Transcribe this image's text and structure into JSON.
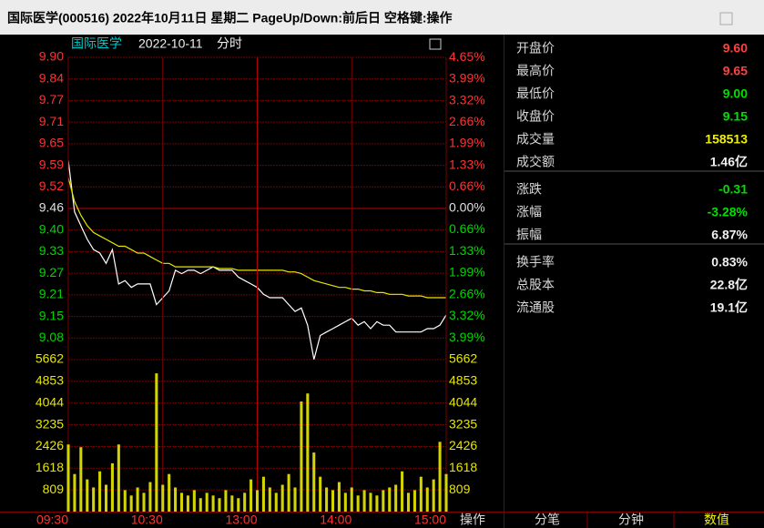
{
  "window": {
    "title": "国际医学(000516) 2022年10月11日 星期二 PageUp/Down:前后日 空格键:操作"
  },
  "chart_data": [
    {
      "type": "line",
      "title": "国际医学",
      "date": "2022-10-11",
      "view": "分时",
      "x": [
        0,
        4,
        8,
        12,
        16,
        20,
        24,
        28,
        32,
        36,
        40,
        44,
        48,
        52,
        56,
        60,
        64,
        68,
        72,
        76,
        80,
        84,
        88,
        92,
        96,
        100,
        104,
        108,
        112,
        116,
        120,
        124,
        128,
        132,
        136,
        140,
        144,
        148,
        152,
        156,
        160,
        164,
        168,
        172,
        176,
        180,
        184,
        188,
        192,
        196,
        200,
        204,
        208,
        212,
        216,
        220,
        224,
        228,
        232,
        236,
        240
      ],
      "xlim": [
        0,
        240
      ],
      "ylim": [
        9.0197,
        9.9003
      ],
      "yticks": [
        {
          "value": 9.9003,
          "label": "9.90"
        },
        {
          "value": 9.8374,
          "label": "9.84"
        },
        {
          "value": 9.7745,
          "label": "9.77"
        },
        {
          "value": 9.7116,
          "label": "9.71"
        },
        {
          "value": 9.6487,
          "label": "9.65"
        },
        {
          "value": 9.5858,
          "label": "9.59"
        },
        {
          "value": 9.5229,
          "label": "9.52"
        },
        {
          "value": 9.46,
          "label": "9.46"
        },
        {
          "value": 9.3971,
          "label": "9.40"
        },
        {
          "value": 9.3342,
          "label": "9.33"
        },
        {
          "value": 9.2713,
          "label": "9.27"
        },
        {
          "value": 9.2084,
          "label": "9.21"
        },
        {
          "value": 9.1455,
          "label": "9.15"
        },
        {
          "value": 9.0826,
          "label": "9.08"
        }
      ],
      "y2lim": [
        -4.655,
        4.655
      ],
      "y2ticks": [
        {
          "value": 4.65,
          "label": "4.65%"
        },
        {
          "value": 3.99,
          "label": "3.99%"
        },
        {
          "value": 3.32,
          "label": "3.32%"
        },
        {
          "value": 2.66,
          "label": "2.66%"
        },
        {
          "value": 1.99,
          "label": "1.99%"
        },
        {
          "value": 1.33,
          "label": "1.33%"
        },
        {
          "value": 0.66,
          "label": "0.66%"
        },
        {
          "value": 0,
          "label": "0.00%"
        },
        {
          "value": -0.66,
          "label": "0.66%"
        },
        {
          "value": -1.33,
          "label": "1.33%"
        },
        {
          "value": -1.99,
          "label": "1.99%"
        },
        {
          "value": -2.66,
          "label": "2.66%"
        },
        {
          "value": -3.32,
          "label": "3.32%"
        },
        {
          "value": -3.99,
          "label": "3.99%"
        }
      ],
      "grid": true,
      "series": [
        {
          "color": "#ffffff",
          "values": [
            9.6,
            9.45,
            9.41,
            9.37,
            9.34,
            9.33,
            9.3,
            9.34,
            9.24,
            9.25,
            9.23,
            9.24,
            9.24,
            9.24,
            9.18,
            9.2,
            9.22,
            9.28,
            9.27,
            9.28,
            9.28,
            9.27,
            9.28,
            9.29,
            9.28,
            9.28,
            9.28,
            9.26,
            9.25,
            9.24,
            9.23,
            9.21,
            9.2,
            9.2,
            9.2,
            9.18,
            9.16,
            9.17,
            9.12,
            9.02,
            9.09,
            9.1,
            9.11,
            9.12,
            9.13,
            9.14,
            9.12,
            9.13,
            9.11,
            9.13,
            9.12,
            9.12,
            9.1,
            9.1,
            9.1,
            9.1,
            9.1,
            9.11,
            9.11,
            9.12,
            9.15
          ]
        },
        {
          "color": "#e6e600",
          "values": [
            9.55,
            9.48,
            9.44,
            9.41,
            9.39,
            9.38,
            9.37,
            9.36,
            9.35,
            9.35,
            9.34,
            9.33,
            9.33,
            9.32,
            9.31,
            9.3,
            9.3,
            9.29,
            9.29,
            9.29,
            9.29,
            9.29,
            9.29,
            9.29,
            9.285,
            9.285,
            9.285,
            9.28,
            9.28,
            9.28,
            9.28,
            9.28,
            9.28,
            9.28,
            9.28,
            9.275,
            9.275,
            9.27,
            9.26,
            9.25,
            9.245,
            9.24,
            9.235,
            9.23,
            9.23,
            9.225,
            9.225,
            9.22,
            9.22,
            9.215,
            9.215,
            9.21,
            9.21,
            9.21,
            9.205,
            9.205,
            9.205,
            9.2,
            9.2,
            9.2,
            9.2
          ]
        }
      ]
    },
    {
      "type": "bar",
      "x": [
        0,
        4,
        8,
        12,
        16,
        20,
        24,
        28,
        32,
        36,
        40,
        44,
        48,
        52,
        56,
        60,
        64,
        68,
        72,
        76,
        80,
        84,
        88,
        92,
        96,
        100,
        104,
        108,
        112,
        116,
        120,
        124,
        128,
        132,
        136,
        140,
        144,
        148,
        152,
        156,
        160,
        164,
        168,
        172,
        176,
        180,
        184,
        188,
        192,
        196,
        200,
        204,
        208,
        212,
        216,
        220,
        224,
        228,
        232,
        236,
        240
      ],
      "xlim": [
        0,
        240
      ],
      "xticks": [
        {
          "value": 0,
          "label": "09:30"
        },
        {
          "value": 60,
          "label": "10:30"
        },
        {
          "value": 120,
          "label": "13:00"
        },
        {
          "value": 180,
          "label": "14:00"
        },
        {
          "value": 240,
          "label": "15:00"
        }
      ],
      "ylim": [
        0,
        5662
      ],
      "yticks": [
        5662,
        4853,
        4044,
        3235,
        2426,
        1618,
        809
      ],
      "grid": true,
      "color": "#d4d400",
      "values": [
        2500,
        1400,
        2400,
        1200,
        900,
        1500,
        1000,
        1800,
        2500,
        800,
        600,
        900,
        700,
        1100,
        5150,
        1000,
        1400,
        900,
        700,
        600,
        800,
        500,
        700,
        600,
        500,
        800,
        600,
        500,
        700,
        1200,
        800,
        1300,
        900,
        700,
        1000,
        1400,
        900,
        4100,
        4400,
        2200,
        1300,
        900,
        800,
        1100,
        700,
        900,
        600,
        800,
        700,
        600,
        800,
        900,
        1000,
        1500,
        700,
        800,
        1300,
        900,
        1200,
        2600,
        1400
      ]
    }
  ],
  "quote_panel": {
    "groups": [
      [
        {
          "label": "开盘价",
          "value": "9.60",
          "color": "#ff4040"
        },
        {
          "label": "最高价",
          "value": "9.65",
          "color": "#ff4040"
        },
        {
          "label": "最低价",
          "value": "9.00",
          "color": "#00e000"
        },
        {
          "label": "收盘价",
          "value": "9.15",
          "color": "#00e000"
        },
        {
          "label": "成交量",
          "value": "158513",
          "color": "#f0f000"
        },
        {
          "label": "成交额",
          "value": "1.46亿",
          "color": "#f0f0f0"
        }
      ],
      [
        {
          "label": "涨跌",
          "value": "-0.31",
          "color": "#00e000"
        },
        {
          "label": "涨幅",
          "value": "-3.28%",
          "color": "#00e000"
        },
        {
          "label": "振幅",
          "value": "6.87%",
          "color": "#f0f0f0"
        }
      ],
      [
        {
          "label": "换手率",
          "value": "0.83%",
          "color": "#f0f0f0"
        },
        {
          "label": "总股本",
          "value": "22.8亿",
          "color": "#f0f0f0"
        },
        {
          "label": "流通股",
          "value": "19.1亿",
          "color": "#f0f0f0"
        }
      ]
    ]
  },
  "tabs": {
    "items": [
      "操作",
      "分笔",
      "分钟",
      "数值"
    ],
    "active": 3
  }
}
